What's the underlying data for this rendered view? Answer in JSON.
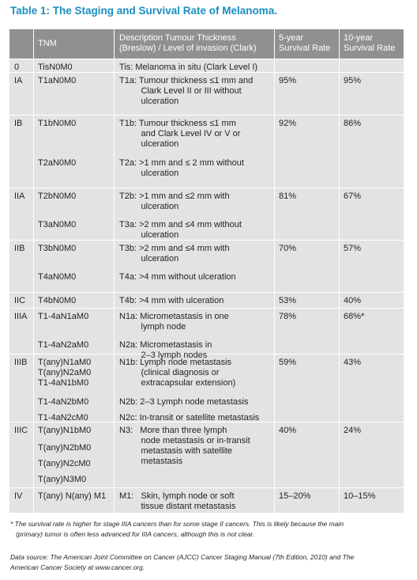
{
  "title": "Table 1: The Staging and Survival Rate of Melanoma.",
  "columns": [
    "TNM",
    "Description Tumour Thickness\n(Breslow) / Level of invasion (Clark)",
    "5-year\nSurvival Rate",
    "10-year\nSurvival Rate"
  ],
  "rows": [
    {
      "stage": "0",
      "tnm": [
        "TisN0M0"
      ],
      "desc": [
        "Tis: Melanoma in situ (Clark Level I)"
      ],
      "five": "",
      "ten": ""
    },
    {
      "stage": "IA",
      "tnm": [
        "T1aN0M0"
      ],
      "desc": [
        "T1a: Tumour thickness ≤1 mm and\n         Clark Level II or III without\n         ulceration"
      ],
      "five": "95%",
      "ten": "95%"
    },
    {
      "stage": "IB",
      "tnm": [
        "T1bN0M0",
        "T2aN0M0"
      ],
      "desc": [
        "T1b: Tumour thickness ≤1 mm\n         and Clark Level IV or V or\n         ulceration",
        "T2a: >1 mm and ≤ 2 mm without\n         ulceration"
      ],
      "five": "92%",
      "ten": "86%"
    },
    {
      "stage": "IIA",
      "tnm": [
        "T2bN0M0",
        "T3aN0M0"
      ],
      "desc": [
        "T2b: >1 mm and ≤2 mm with\n         ulceration",
        "T3a: >2 mm and ≤4 mm without\n         ulceration"
      ],
      "five": "81%",
      "ten": "67%"
    },
    {
      "stage": "IIB",
      "tnm": [
        "T3bN0M0",
        "T4aN0M0"
      ],
      "desc": [
        "T3b: >2 mm and ≤4 mm with\n         ulceration",
        "T4a: >4 mm without ulceration"
      ],
      "five": "70%",
      "ten": "57%"
    },
    {
      "stage": "IIC",
      "tnm": [
        "T4bN0M0"
      ],
      "desc": [
        "T4b: >4 mm with ulceration"
      ],
      "five": "53%",
      "ten": "40%"
    },
    {
      "stage": "IIIA",
      "tnm": [
        "T1-4aN1aM0",
        "T1-4aN2aM0"
      ],
      "desc": [
        "N1a: Micrometastasis in one\n         lymph node",
        "N2a: Micrometastasis in\n         2–3 lymph nodes"
      ],
      "five": "78%",
      "ten": "68%*"
    },
    {
      "stage": "IIIB",
      "tnm": [
        "T(any)N1aM0\nT(any)N2aM0\nT1-4aN1bM0",
        "T1-4aN2bM0",
        "T1-4aN2cM0"
      ],
      "desc": [
        "N1b: Lymph node metastasis\n         (clinical diagnosis or\n         extracapsular extension)",
        "N2b: 2–3 Lymph node metastasis",
        "N2c: In-transit or satellite metastasis"
      ],
      "five": "59%",
      "ten": "43%"
    },
    {
      "stage": "IIIC",
      "tnm": [
        "T(any)N1bM0",
        "T(any)N2bM0",
        "T(any)N2cM0",
        "T(any)N3M0"
      ],
      "desc": [
        "N3:   More than three lymph\n         node metastasis or in-transit\n         metastasis with satellite\n         metastasis"
      ],
      "five": "40%",
      "ten": "24%"
    },
    {
      "stage": "IV",
      "tnm": [
        "T(any) N(any) M1"
      ],
      "desc": [
        "M1:   Skin, lymph node or soft\n         tissue distant metastasis"
      ],
      "five": "15–20%",
      "ten": "10–15%"
    }
  ],
  "footnote": "* The survival rate is higher for stage IIIA cancers than for some stage II cancers. This is likely because the main\n   (primary) tumor is often less advanced for IIIA cancers, although this is not clear.",
  "source": "Data source: The American Joint Committee on Cancer (AJCC) Cancer Staging Manual (7th Edition, 2010) and The\nAmerican Cancer Society at www.cancer.org.",
  "colors": {
    "title": "#1a8fc0",
    "header_bg": "#8f9092",
    "body_bg": "#e2e3e4",
    "grid": "#ffffff"
  }
}
